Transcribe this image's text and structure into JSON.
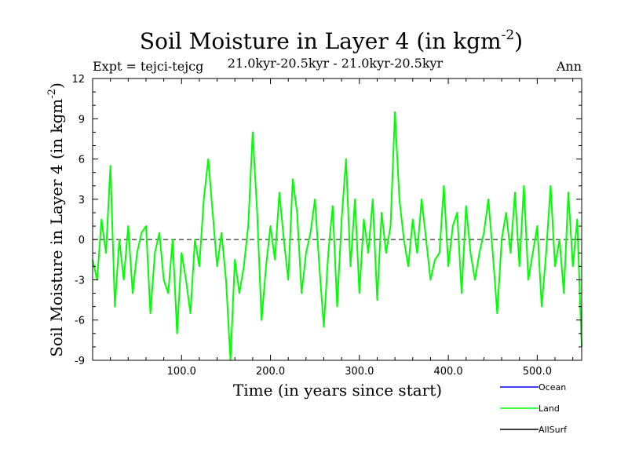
{
  "chart_data": {
    "type": "line",
    "title": "Soil Moisture in Layer 4 (in kgm",
    "title_sup": "-2",
    "title_end": ")",
    "subtitle_left": "Expt = tejci-tejcg",
    "subtitle_center": "21.0kyr-20.5kyr - 21.0kyr-20.5kyr",
    "subtitle_right": "Ann",
    "xlabel": "Time (in years since start)",
    "ylabel": "Soil Moisture in Layer 4 (in kgm",
    "ylabel_sup": "-2",
    "ylabel_end": ")",
    "xlim": [
      0,
      550
    ],
    "ylim": [
      -9,
      12
    ],
    "x_ticks": [
      100,
      200,
      300,
      400,
      500
    ],
    "x_tick_labels": [
      "100.0",
      "200.0",
      "300.0",
      "400.0",
      "500.0"
    ],
    "y_ticks": [
      -9,
      -6,
      -3,
      0,
      3,
      6,
      9,
      12
    ],
    "y_tick_labels": [
      "-9",
      "-6",
      "-3",
      "0",
      "3",
      "6",
      "9",
      "12"
    ],
    "zero_line": true,
    "legend": [
      {
        "name": "Ocean",
        "color": "#0000ff"
      },
      {
        "name": "Land",
        "color": "#00ff00"
      },
      {
        "name": "AllSurf",
        "color": "#000000"
      }
    ],
    "series": [
      {
        "name": "Land",
        "color": "#00ff00",
        "x": [
          0,
          5,
          10,
          15,
          20,
          25,
          30,
          35,
          40,
          45,
          50,
          55,
          60,
          65,
          70,
          75,
          80,
          85,
          90,
          95,
          100,
          105,
          110,
          115,
          120,
          125,
          130,
          135,
          140,
          145,
          150,
          155,
          160,
          165,
          170,
          175,
          180,
          185,
          190,
          195,
          200,
          205,
          210,
          215,
          220,
          225,
          230,
          235,
          240,
          245,
          250,
          255,
          260,
          265,
          270,
          275,
          280,
          285,
          290,
          295,
          300,
          305,
          310,
          315,
          320,
          325,
          330,
          335,
          340,
          345,
          350,
          355,
          360,
          365,
          370,
          375,
          380,
          385,
          390,
          395,
          400,
          405,
          410,
          415,
          420,
          425,
          430,
          435,
          440,
          445,
          450,
          455,
          460,
          465,
          470,
          475,
          480,
          485,
          490,
          495,
          500,
          505,
          510,
          515,
          520,
          525,
          530,
          535,
          540,
          545,
          550
        ],
        "values": [
          -1.5,
          -3,
          1.5,
          -1,
          5.5,
          -5,
          0,
          -3,
          1,
          -4,
          -1,
          0.5,
          1,
          -5.5,
          -1,
          0.5,
          -3,
          -4,
          0,
          -7,
          -1,
          -3,
          -5.5,
          0,
          -2,
          3,
          6,
          2,
          -2,
          0.5,
          -3,
          -9,
          -1.5,
          -4,
          -2,
          1,
          8,
          2,
          -6,
          -2,
          1,
          -1.5,
          3.5,
          0,
          -3,
          4.5,
          2,
          -4,
          -1,
          0.5,
          3,
          -2,
          -6.5,
          -1,
          2.5,
          -5,
          1.5,
          6,
          -2,
          3,
          -4,
          1.5,
          -1,
          3,
          -4.5,
          2,
          -1,
          1,
          9.5,
          3,
          0,
          -2,
          1.5,
          -1,
          3,
          0,
          -3,
          -1.5,
          -1,
          4,
          -2,
          1,
          2,
          -4,
          2.5,
          -1,
          -3,
          -1,
          0.5,
          3,
          -1,
          -5.5,
          0,
          2,
          -1,
          3.5,
          -2,
          4,
          -3,
          -1,
          1,
          -5,
          -1,
          4,
          -2,
          0,
          -4,
          3.5,
          -2,
          1.5,
          -8
        ]
      }
    ]
  }
}
